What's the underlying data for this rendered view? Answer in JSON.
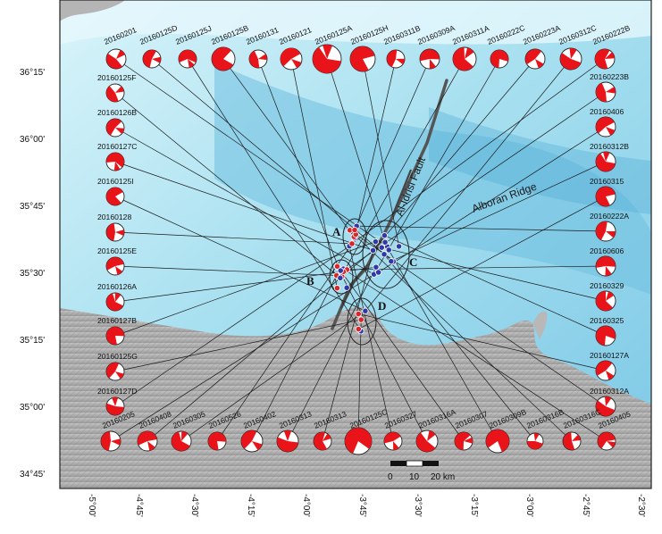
{
  "map": {
    "lat_ticks": [
      "36°15'",
      "36°00'",
      "35°45'",
      "35°30'",
      "35°15'",
      "35°00'",
      "34°45'"
    ],
    "lon_ticks": [
      "-5°00'",
      "-4°45'",
      "-4°30'",
      "-4°15'",
      "-4°00'",
      "-3°45'",
      "-3°30'",
      "-3°15'",
      "-3°00'",
      "-2°45'",
      "-2°30'"
    ],
    "features": {
      "fault": "Al-Idrisi Fault",
      "ridge": "Alboran Ridge"
    },
    "zones": [
      "A",
      "B",
      "C",
      "D"
    ],
    "scale": {
      "values": [
        "0",
        "10",
        "20 km"
      ]
    },
    "colors": {
      "sea_light": "#cdeef7",
      "sea_mid": "#8fd3ea",
      "sea_deep": "#5fb6da",
      "land": "#a9a9a9",
      "beachball_fill": "#e8141a",
      "epicenter_red": "#d9262c",
      "epicenter_blue": "#2f3aa8"
    }
  },
  "events": {
    "top": [
      "20160201",
      "20160125D",
      "20160125J",
      "20160125B",
      "20160131",
      "20160121",
      "20160125A",
      "20160125H",
      "20160311B",
      "20160309A",
      "20160311A",
      "20160222C",
      "20160223A",
      "20160312C",
      "20160222B"
    ],
    "left": [
      "20160125F",
      "20160126B",
      "20160127C",
      "20160125I",
      "20160128",
      "20160125E",
      "20160126A",
      "20160127B",
      "20160125G",
      "20160127D",
      "20160205"
    ],
    "right": [
      "20160223B",
      "20160406",
      "20160312B",
      "20160315",
      "20160222A",
      "20160606",
      "20160329",
      "20160325",
      "20160127A",
      "20160312A",
      "20160405"
    ],
    "bottom": [
      "20160408",
      "20160305",
      "20160526",
      "20160402",
      "20160313",
      "20160313",
      "20160125C",
      "20160327",
      "20160316A",
      "20160307",
      "20160309B",
      "20160316B",
      "20160316C"
    ]
  }
}
